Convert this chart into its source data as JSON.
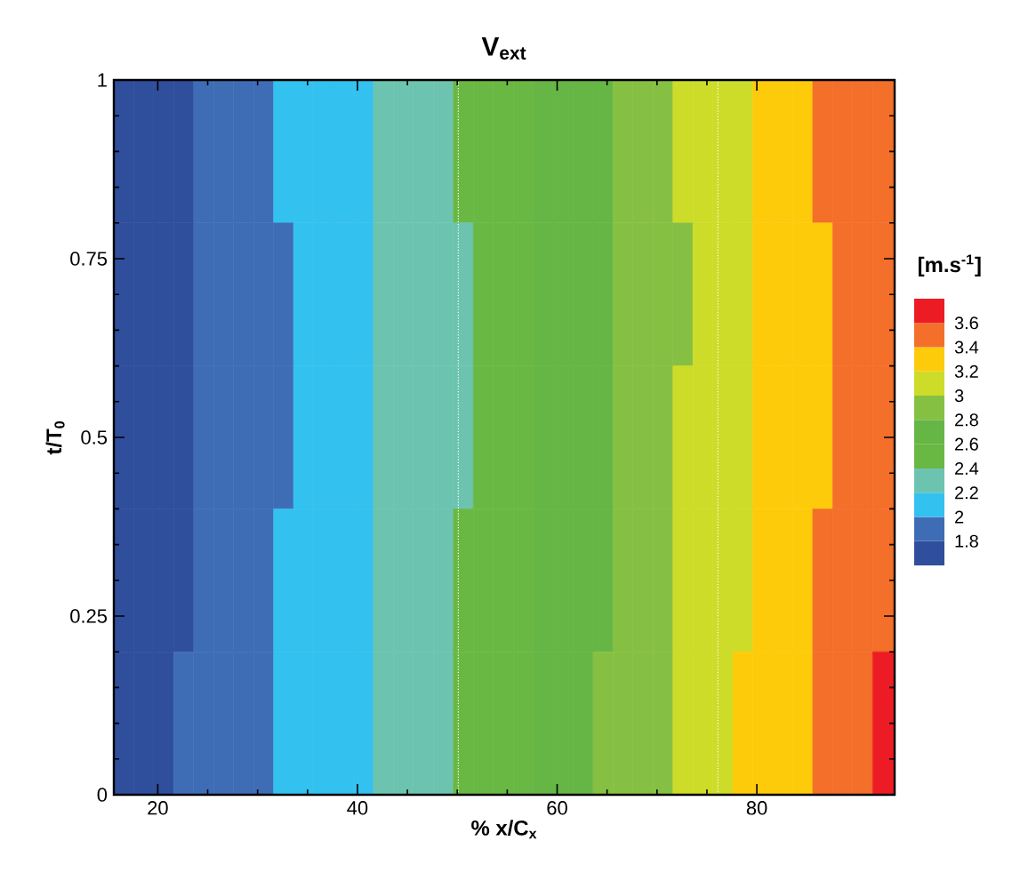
{
  "chart_data": {
    "type": "heatmap",
    "title": "V$_{ext}$",
    "xlabel": "% x/C$_{x}$",
    "ylabel": "t/T$_{0}$",
    "clabel": "[m.s$^{-1}$]",
    "x": [
      16.6,
      18.6,
      20.6,
      22.6,
      24.6,
      26.6,
      28.6,
      30.6,
      32.6,
      34.6,
      36.6,
      38.6,
      40.6,
      42.6,
      44.6,
      46.6,
      48.6,
      50.6,
      52.6,
      54.6,
      56.6,
      58.6,
      60.6,
      62.6,
      64.6,
      66.6,
      68.6,
      70.6,
      72.6,
      74.6,
      76.6,
      78.6,
      80.6,
      82.6,
      84.6,
      86.6,
      88.6,
      90.6,
      92.6
    ],
    "cells": [
      [
        1.7,
        1.7,
        1.7,
        1.7,
        1.9,
        1.9,
        1.9,
        1.9,
        2.1,
        2.1,
        2.1,
        2.1,
        2.1,
        2.3,
        2.3,
        2.3,
        2.3,
        2.5,
        2.5,
        2.5,
        2.5,
        2.7,
        2.7,
        2.7,
        2.7,
        2.9,
        2.9,
        2.9,
        3.1,
        3.1,
        3.1,
        3.1,
        3.3,
        3.3,
        3.3,
        3.5,
        3.5,
        3.5,
        3.5
      ],
      [
        1.7,
        1.7,
        1.7,
        1.7,
        1.9,
        1.9,
        1.9,
        1.9,
        1.9,
        2.1,
        2.1,
        2.1,
        2.1,
        2.3,
        2.3,
        2.3,
        2.3,
        2.3,
        2.5,
        2.5,
        2.5,
        2.7,
        2.7,
        2.7,
        2.7,
        2.9,
        2.9,
        2.9,
        2.9,
        3.1,
        3.1,
        3.1,
        3.3,
        3.3,
        3.3,
        3.3,
        3.5,
        3.5,
        3.5
      ],
      [
        1.7,
        1.7,
        1.7,
        1.7,
        1.9,
        1.9,
        1.9,
        1.9,
        1.9,
        2.1,
        2.1,
        2.1,
        2.1,
        2.3,
        2.3,
        2.3,
        2.3,
        2.3,
        2.5,
        2.5,
        2.5,
        2.7,
        2.7,
        2.7,
        2.7,
        2.9,
        2.9,
        2.9,
        3.1,
        3.1,
        3.1,
        3.1,
        3.3,
        3.3,
        3.3,
        3.3,
        3.5,
        3.5,
        3.5
      ],
      [
        1.7,
        1.7,
        1.7,
        1.7,
        1.9,
        1.9,
        1.9,
        1.9,
        2.1,
        2.1,
        2.1,
        2.1,
        2.1,
        2.3,
        2.3,
        2.3,
        2.3,
        2.5,
        2.5,
        2.5,
        2.5,
        2.7,
        2.7,
        2.7,
        2.7,
        2.9,
        2.9,
        2.9,
        3.1,
        3.1,
        3.1,
        3.1,
        3.3,
        3.3,
        3.3,
        3.5,
        3.5,
        3.5,
        3.5
      ],
      [
        1.7,
        1.7,
        1.7,
        1.9,
        1.9,
        1.9,
        1.9,
        1.9,
        2.1,
        2.1,
        2.1,
        2.1,
        2.1,
        2.3,
        2.3,
        2.3,
        2.3,
        2.5,
        2.5,
        2.5,
        2.5,
        2.7,
        2.7,
        2.7,
        2.9,
        2.9,
        2.9,
        2.9,
        3.1,
        3.1,
        3.1,
        3.3,
        3.3,
        3.3,
        3.3,
        3.5,
        3.5,
        3.5,
        3.7
      ]
    ],
    "clim": [
      1.6,
      3.8
    ],
    "cticks": [
      1.8,
      2,
      2.2,
      2.4,
      2.6,
      2.8,
      3,
      3.2,
      3.4,
      3.6
    ],
    "colors": [
      "#2f4e9c",
      "#3e6db5",
      "#33c1ef",
      "#6cc4b0",
      "#6ab844",
      "#66b646",
      "#86c043",
      "#cddc29",
      "#fecb0b",
      "#f36f2a",
      "#ed1c24"
    ],
    "xlim": [
      15.6,
      93.8
    ],
    "ylim": [
      0,
      1
    ],
    "xticks": [
      20,
      40,
      60,
      80
    ],
    "yticks": [
      0,
      0.25,
      0.5,
      0.75,
      1
    ],
    "ref_lines": [
      {
        "axis": "x",
        "value": 50.1,
        "color": "#ffffff",
        "line_style": "dotted"
      },
      {
        "axis": "x",
        "value": 76.1,
        "color": "#ffffff",
        "line_style": "dotted"
      }
    ]
  }
}
